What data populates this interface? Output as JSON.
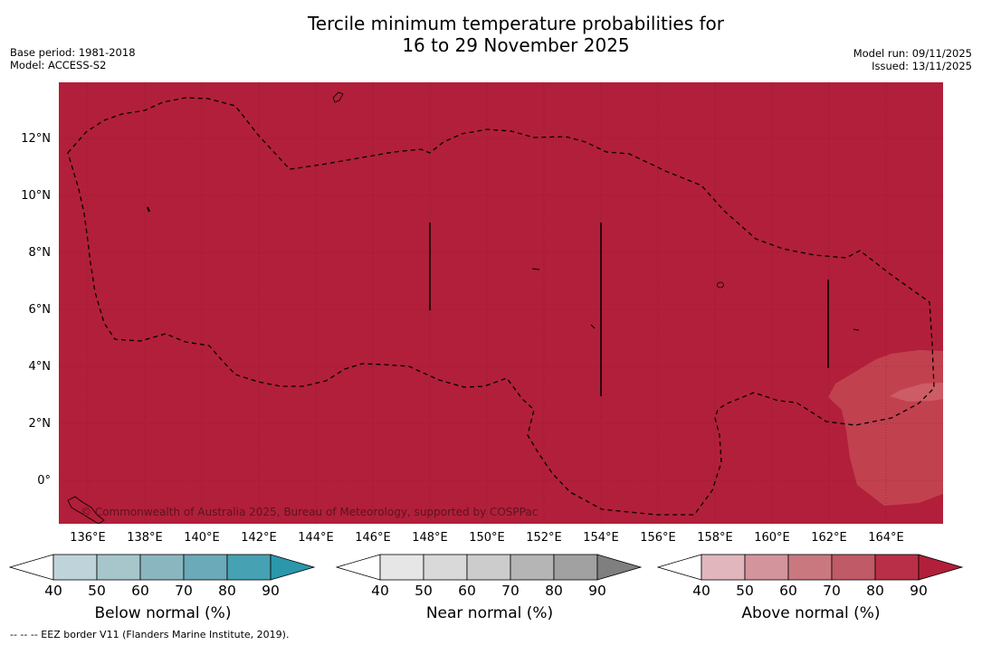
{
  "title": {
    "line1": "Tercile minimum temperature probabilities for",
    "line2": "16 to 29 November 2025"
  },
  "meta_left": {
    "base_period": "Base period: 1981-2018",
    "model": "Model: ACCESS-S2"
  },
  "meta_right": {
    "model_run": "Model run: 09/11/2025",
    "issued": "Issued: 13/11/2025"
  },
  "map": {
    "copyright": "© Commonwealth of Australia 2025, Bureau of Meteorology, supported by COSPPac",
    "background_color": "#b21f3a",
    "lower_prob_color": "#c2414f",
    "lowest_prob_color": "#cc5c66",
    "lat_labels": [
      "12°N",
      "10°N",
      "8°N",
      "6°N",
      "4°N",
      "2°N",
      "0°"
    ],
    "lon_labels": [
      "136°E",
      "138°E",
      "140°E",
      "142°E",
      "144°E",
      "146°E",
      "148°E",
      "150°E",
      "152°E",
      "154°E",
      "156°E",
      "158°E",
      "160°E",
      "162°E",
      "164°E"
    ]
  },
  "colorbars": [
    {
      "title": "Below normal (%)",
      "ticks": [
        "40",
        "50",
        "60",
        "70",
        "80",
        "90"
      ],
      "colors": [
        "#ffffff",
        "#bfd4da",
        "#a7c6cc",
        "#8ab6c0",
        "#6baab8",
        "#46a1b2",
        "#2b97ab"
      ]
    },
    {
      "title": "Near normal (%)",
      "ticks": [
        "40",
        "50",
        "60",
        "70",
        "80",
        "90"
      ],
      "colors": [
        "#ffffff",
        "#e6e6e6",
        "#d9d9d9",
        "#cccccc",
        "#b5b5b5",
        "#a1a1a1",
        "#7f7f7f"
      ]
    },
    {
      "title": "Above normal (%)",
      "ticks": [
        "40",
        "50",
        "60",
        "70",
        "80",
        "90"
      ],
      "colors": [
        "#ffffff",
        "#e1b6bd",
        "#d4949c",
        "#c97880",
        "#c05a66",
        "#b92f47",
        "#b21f3a"
      ]
    }
  ],
  "footnote": "--  --  -- EEZ border V11 (Flanders Marine Institute, 2019)."
}
